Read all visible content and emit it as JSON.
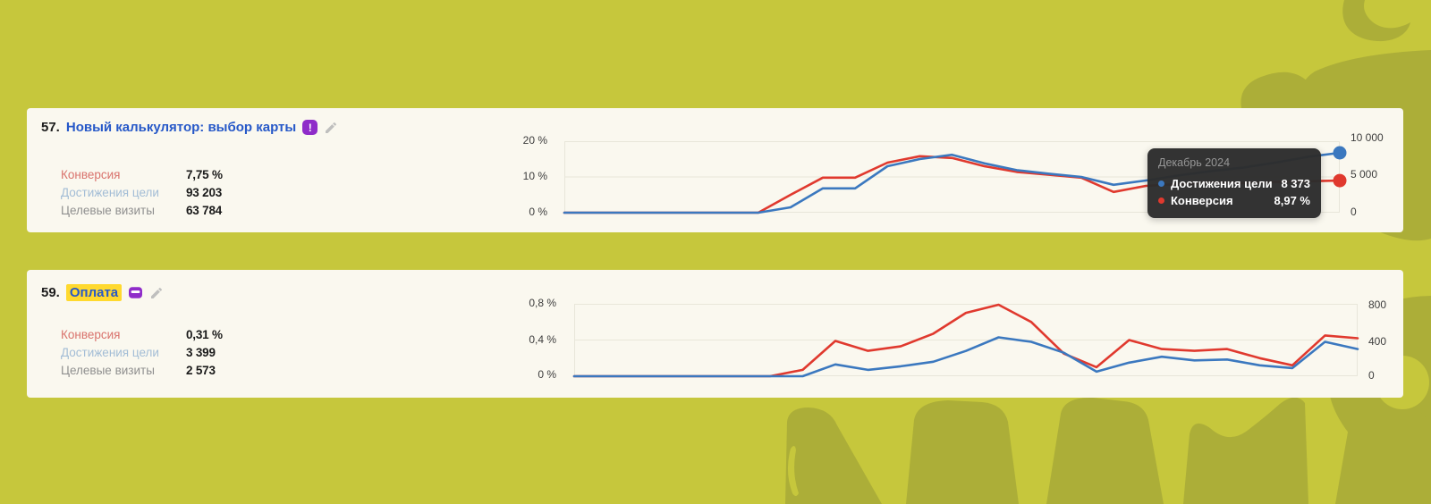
{
  "page": {
    "background": "#c6c73c",
    "leaf": "#acae38",
    "card_background": "#faf8ef"
  },
  "colors": {
    "blue_line": "#3b78bf",
    "red_line": "#e0392e",
    "link_blue": "#2658c8",
    "highlight": "#ffd92e",
    "purple": "#8f2cc9",
    "pencil": "#b9b9b9",
    "axis_text": "#3d3d3d",
    "grid": "#e8e6da",
    "label_conversion": "#d9726c",
    "label_goal_reaches": "#a3bdd6",
    "label_target_visits": "#8f8f8f",
    "value_text": "#1a1a1a",
    "tooltip_bg": "#2c2c2c"
  },
  "cards": [
    {
      "index": "57.",
      "title": "Новый калькулятор: выбор карты",
      "badge": "!",
      "stats": [
        {
          "label": "Конверсия",
          "value": "7,75 %"
        },
        {
          "label": "Достижения цели",
          "value": "93 203"
        },
        {
          "label": "Целевые визиты",
          "value": "63 784"
        }
      ],
      "left_ticks": [
        "20 %",
        "10 %",
        "0 %"
      ],
      "right_ticks": [
        "10 000",
        "5 000",
        "0"
      ]
    },
    {
      "index": "59.",
      "title": "Оплата",
      "stats": [
        {
          "label": "Конверсия",
          "value": "0,31 %"
        },
        {
          "label": "Достижения цели",
          "value": "3 399"
        },
        {
          "label": "Целевые визиты",
          "value": "2 573"
        }
      ],
      "left_ticks": [
        "0,8 %",
        "0,4 %",
        "0 %"
      ],
      "right_ticks": [
        "800",
        "400",
        "0"
      ]
    }
  ],
  "tooltip": {
    "title": "Декабрь 2024",
    "rows": [
      {
        "label": "Достижения цели",
        "value": "8 373",
        "color": "#3b78bf"
      },
      {
        "label": "Конверсия",
        "value": "8,97 %",
        "color": "#e0392e"
      }
    ]
  },
  "chart_data": [
    {
      "type": "line",
      "title": "Цель 57 — Новый калькулятор: выбор карты",
      "x_points": 25,
      "x_last_label": "Декабрь 2024",
      "grid": true,
      "left_axis": {
        "ticks": [
          "0 %",
          "10 %",
          "20 %"
        ],
        "range": [
          0,
          20
        ]
      },
      "right_axis": {
        "ticks": [
          "0",
          "5 000",
          "10 000"
        ],
        "range": [
          0,
          10000
        ]
      },
      "end_markers": true,
      "series": [
        {
          "name": "Конверсия",
          "axis": "left",
          "color": "#e0392e",
          "values": [
            0,
            0,
            0,
            0,
            0,
            0,
            0,
            5.0,
            9.8,
            9.8,
            14.0,
            15.8,
            15.3,
            13.0,
            11.4,
            10.6,
            9.8,
            5.8,
            7.5,
            8.0,
            8.5,
            8.3,
            8.6,
            8.8,
            8.97
          ]
        },
        {
          "name": "Достижения цели",
          "axis": "right",
          "color": "#3b78bf",
          "values": [
            0,
            0,
            0,
            0,
            0,
            0,
            0,
            750,
            3400,
            3400,
            6500,
            7500,
            8100,
            6900,
            5950,
            5450,
            5000,
            3900,
            4500,
            5200,
            5800,
            6300,
            7000,
            7800,
            8373
          ]
        }
      ]
    },
    {
      "type": "line",
      "title": "Цель 59 — Оплата",
      "x_points": 25,
      "x_last_label": "Декабрь 2024",
      "grid": true,
      "left_axis": {
        "ticks": [
          "0 %",
          "0,4 %",
          "0,8 %"
        ],
        "range": [
          0,
          0.8
        ]
      },
      "right_axis": {
        "ticks": [
          "0",
          "400",
          "800"
        ],
        "range": [
          0,
          800
        ]
      },
      "end_markers": false,
      "series": [
        {
          "name": "Конверсия",
          "axis": "left",
          "color": "#e0392e",
          "values": [
            0,
            0,
            0,
            0,
            0,
            0,
            0,
            0.07,
            0.39,
            0.28,
            0.33,
            0.47,
            0.7,
            0.79,
            0.6,
            0.25,
            0.1,
            0.4,
            0.3,
            0.28,
            0.3,
            0.2,
            0.12,
            0.45,
            0.42
          ]
        },
        {
          "name": "Достижения цели",
          "axis": "right",
          "color": "#3b78bf",
          "values": [
            0,
            0,
            0,
            0,
            0,
            0,
            0,
            0,
            130,
            70,
            110,
            160,
            280,
            430,
            380,
            260,
            50,
            150,
            215,
            175,
            185,
            120,
            90,
            380,
            300
          ]
        }
      ]
    }
  ]
}
